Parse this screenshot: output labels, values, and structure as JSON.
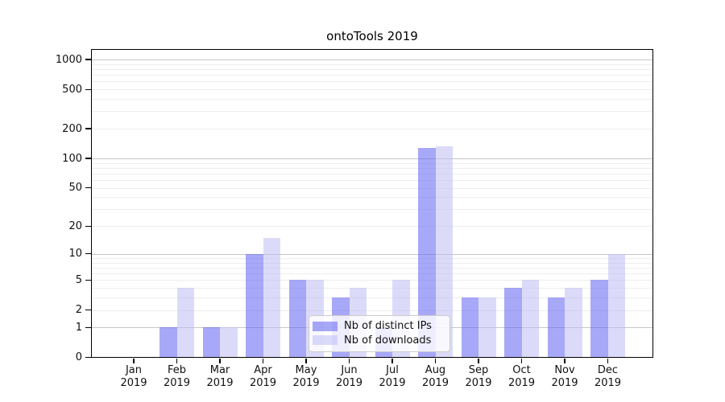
{
  "chart_data": {
    "type": "bar",
    "title": "ontoTools 2019",
    "categories": [
      "Jan 2019",
      "Feb 2019",
      "Mar 2019",
      "Apr 2019",
      "May 2019",
      "Jun 2019",
      "Jul 2019",
      "Aug 2019",
      "Sep 2019",
      "Oct 2019",
      "Nov 2019",
      "Dec 2019"
    ],
    "x_tick_month": [
      "Jan",
      "Feb",
      "Mar",
      "Apr",
      "May",
      "Jun",
      "Jul",
      "Aug",
      "Sep",
      "Oct",
      "Nov",
      "Dec"
    ],
    "x_tick_year": "2019",
    "series": [
      {
        "key": "distinct-ips",
        "name": "Nb of distinct IPs",
        "color": "#6161f2",
        "opacity": 0.55,
        "values": [
          0,
          1,
          1,
          10,
          5,
          3,
          1,
          128,
          3,
          4,
          3,
          5
        ]
      },
      {
        "key": "downloads",
        "name": "Nb of downloads",
        "color": "#bebef4",
        "opacity": 0.55,
        "values": [
          0,
          4,
          1,
          15,
          5,
          4,
          5,
          133,
          3,
          5,
          4,
          10
        ]
      }
    ],
    "yscale": "symlog",
    "y_ticks": [
      0,
      1,
      2,
      5,
      10,
      20,
      50,
      100,
      200,
      500,
      1000
    ],
    "ylim": [
      0,
      1280
    ],
    "grid": "horizontal log minor+major, majors at 1,10,100,1000",
    "legend_position": "bottom-center inside plot"
  },
  "colors": {
    "background": "#ffffff",
    "axis": "#000000",
    "text": "#111111",
    "gridline_major": "#c6c6c6",
    "gridline_minor": "#ededed",
    "legend_border": "#cccccc"
  }
}
